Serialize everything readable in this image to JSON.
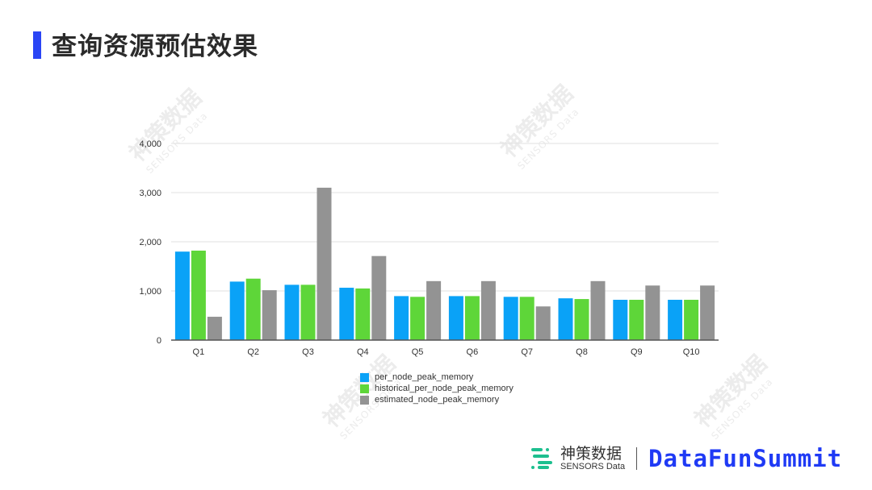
{
  "slide": {
    "title": "查询资源预估效果",
    "accent_color": "#2a45f5"
  },
  "watermark": {
    "cn": "神策数据",
    "en": "SENSORS Data"
  },
  "footer": {
    "brand_cn": "神策数据",
    "brand_en": "SENSORS Data",
    "event": "DataFunSummit"
  },
  "legend": {
    "items": [
      {
        "label": "per_node_peak_memory",
        "color": "#0aa2f7"
      },
      {
        "label": "historical_per_node_peak_memory",
        "color": "#5ed639"
      },
      {
        "label": "estimated_node_peak_memory",
        "color": "#939393"
      }
    ]
  },
  "chart_data": {
    "type": "bar",
    "title": "",
    "xlabel": "",
    "ylabel": "",
    "ylim": [
      0,
      4000
    ],
    "yticks": [
      0,
      1000,
      2000,
      3000,
      4000
    ],
    "ytick_labels": [
      "0",
      "1,000",
      "2,000",
      "3,000",
      "4,000"
    ],
    "grid": true,
    "legend_position": "bottom",
    "categories": [
      "Q1",
      "Q2",
      "Q3",
      "Q4",
      "Q5",
      "Q6",
      "Q7",
      "Q8",
      "Q9",
      "Q10"
    ],
    "series": [
      {
        "name": "per_node_peak_memory",
        "color": "#0aa2f7",
        "values": [
          1800,
          1190,
          1125,
          1065,
          895,
          895,
          880,
          850,
          820,
          820
        ]
      },
      {
        "name": "historical_per_node_peak_memory",
        "color": "#5ed639",
        "values": [
          1820,
          1250,
          1125,
          1050,
          880,
          895,
          880,
          835,
          820,
          820
        ]
      },
      {
        "name": "estimated_node_peak_memory",
        "color": "#939393",
        "values": [
          475,
          1015,
          3100,
          1710,
          1200,
          1200,
          685,
          1200,
          1110,
          1110
        ]
      }
    ]
  }
}
